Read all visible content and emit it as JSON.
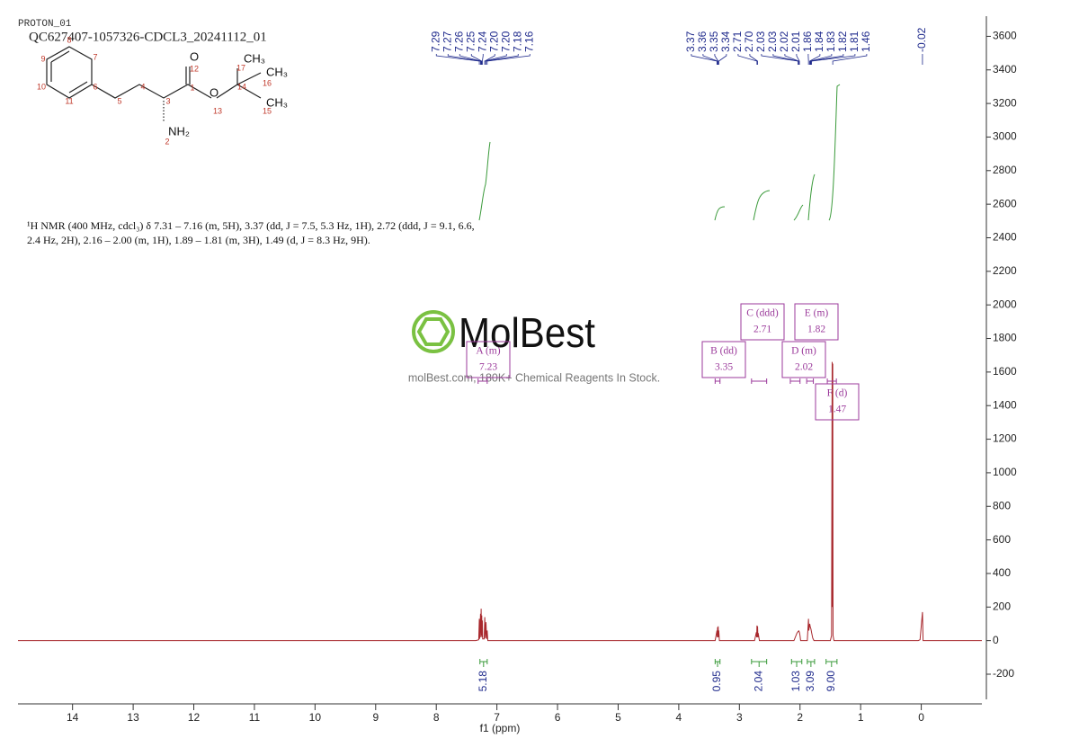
{
  "chart_data": {
    "type": "line",
    "experiment": "PROTON_01",
    "title": "QC627407-1057326-CDCL3_20241112_01",
    "description": [
      "¹H NMR (400 MHz, cdcl₃) δ 7.31 – 7.16 (m, 5H), 3.37 (dd, J = 7.5, 5.3 Hz, 1H), 2.72 (ddd, J = 9.1, 6.6,",
      "2.4 Hz, 2H), 2.16 – 2.00 (m, 1H), 1.89 – 1.81 (m, 3H), 1.49 (d, J = 8.3 Hz, 9H)."
    ],
    "structure": {
      "labels": [
        "8",
        "9",
        "7",
        "10",
        "6",
        "11",
        "5",
        "4",
        "3",
        "1",
        "12",
        "O",
        "13",
        "O",
        "14",
        "17",
        "CH₃",
        "16",
        "CH₃",
        "15",
        "CH₃",
        "NH₂",
        "2"
      ]
    },
    "watermark": {
      "name": "MolBest",
      "tagline": "molBest.com, 180K+ Chemical Reagents In Stock."
    },
    "x_label": "f1 (ppm)",
    "xlim": [
      14.9,
      -1.0
    ],
    "xticks": [
      14,
      13,
      12,
      11,
      10,
      9,
      8,
      7,
      6,
      5,
      4,
      3,
      2,
      1,
      0
    ],
    "ylim": [
      -350,
      3720
    ],
    "yticks": [
      -200,
      0,
      200,
      400,
      600,
      800,
      1000,
      1200,
      1400,
      1600,
      1800,
      2000,
      2200,
      2400,
      2600,
      2800,
      3000,
      3200,
      3400,
      3600
    ],
    "series": [
      {
        "color": "#a8282d",
        "x": [
          14.9,
          7.35,
          7.3,
          7.29,
          7.285,
          7.27,
          7.265,
          7.26,
          7.255,
          7.25,
          7.245,
          7.24,
          7.235,
          7.21,
          7.2,
          7.19,
          7.18,
          7.17,
          7.16,
          7.15,
          3.4,
          3.37,
          3.365,
          3.36,
          3.355,
          3.35,
          3.345,
          3.34,
          3.33,
          2.75,
          2.72,
          2.715,
          2.71,
          2.705,
          2.7,
          2.695,
          2.69,
          2.67,
          2.1,
          2.05,
          2.03,
          2.02,
          2.01,
          2.0,
          1.99,
          1.88,
          1.86,
          1.855,
          1.84,
          1.83,
          1.82,
          1.81,
          1.79,
          1.77,
          1.5,
          1.48,
          1.47,
          1.465,
          1.46,
          1.455,
          1.44,
          0.05,
          0.02,
          -0.02,
          -0.03,
          -1.0
        ],
        "values": [
          0,
          0,
          5,
          130,
          10,
          160,
          20,
          190,
          30,
          150,
          20,
          120,
          10,
          10,
          140,
          15,
          110,
          10,
          60,
          0,
          0,
          60,
          20,
          80,
          20,
          85,
          20,
          60,
          0,
          0,
          50,
          20,
          90,
          20,
          85,
          20,
          45,
          0,
          0,
          45,
          55,
          58,
          50,
          30,
          0,
          0,
          130,
          60,
          100,
          80,
          70,
          50,
          15,
          0,
          0,
          30,
          1660,
          200,
          1650,
          30,
          0,
          0,
          5,
          170,
          0,
          0
        ]
      }
    ],
    "peaks": {
      "values": [
        7.29,
        7.27,
        7.26,
        7.25,
        7.24,
        7.2,
        7.2,
        7.18,
        7.16,
        3.37,
        3.36,
        3.35,
        3.34,
        2.71,
        2.7,
        2.03,
        2.03,
        2.02,
        2.01,
        1.86,
        1.84,
        1.83,
        1.82,
        1.81,
        1.46,
        -0.02
      ],
      "value_labels": [
        "7.29",
        "7.27",
        "7.26",
        "7.25",
        "7.24",
        "7.20",
        "7.20",
        "7.18",
        "7.16",
        "3.37",
        "3.36",
        "3.35",
        "3.34",
        "2.71",
        "2.70",
        "2.03",
        "2.03",
        "2.02",
        "2.01",
        "1.86",
        "1.84",
        "1.83",
        "1.82",
        "1.81",
        "1.46",
        "-0.02"
      ]
    },
    "integrals": {
      "ranges": [
        [
          7.28,
          7.16
        ],
        [
          3.4,
          3.32
        ],
        [
          2.8,
          2.55
        ],
        [
          2.14,
          1.97
        ],
        [
          1.88,
          1.76
        ],
        [
          1.57,
          1.39
        ]
      ],
      "values": [
        5.18,
        0.95,
        2.04,
        1.03,
        3.09,
        9
      ],
      "value_labels": [
        "5.18",
        "0.95",
        "2.04",
        "1.03",
        "3.09",
        "9.00"
      ]
    },
    "multiplets": {
      "names": [
        "A (m)",
        "B (dd)",
        "C (ddd)",
        "D (m)",
        "E (m)",
        "F (d)"
      ],
      "shifts": [
        7.23,
        3.35,
        2.71,
        2.02,
        1.82,
        1.47
      ],
      "ranges": [
        [
          7.31,
          7.16
        ],
        [
          3.4,
          3.32
        ],
        [
          2.8,
          2.55
        ],
        [
          2.16,
          2.0
        ],
        [
          1.89,
          1.78
        ],
        [
          1.55,
          1.4
        ]
      ]
    }
  }
}
